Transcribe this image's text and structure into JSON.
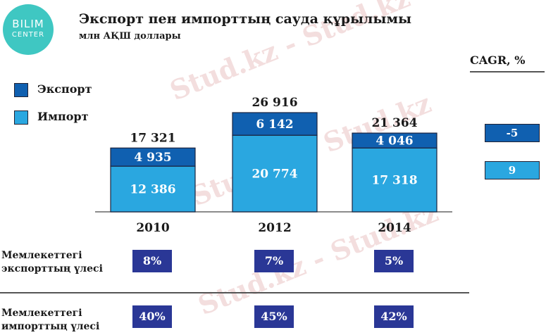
{
  "logo": {
    "line1": "BILIM",
    "line2": "CENTER"
  },
  "title": "Экспорт пен  импорттың сауда құрылымы",
  "subtitle": "млн АҚШ доллары",
  "legend": [
    {
      "label": "Экспорт",
      "color": "#1060b0"
    },
    {
      "label": "Импорт",
      "color": "#2aa7e0"
    }
  ],
  "cagr": {
    "title": "CAGR,  %",
    "export": "-5",
    "import": "9"
  },
  "chart_data": {
    "type": "bar",
    "stacked": true,
    "categories": [
      "2010",
      "2012",
      "2014"
    ],
    "series": [
      {
        "name": "Импорт",
        "values": [
          12386,
          20774,
          17318
        ],
        "labels": [
          "12 386",
          "20 774",
          "17 318"
        ],
        "color": "#2aa7e0"
      },
      {
        "name": "Экспорт",
        "values": [
          4935,
          6142,
          4046
        ],
        "labels": [
          "4 935",
          "6 142",
          "4 046"
        ],
        "color": "#1060b0"
      }
    ],
    "totals": [
      "17 321",
      "26 916",
      "21 364"
    ],
    "total_values": [
      17321,
      26916,
      21364
    ]
  },
  "shares": {
    "export": {
      "label_line1": "Мемлекеттегі",
      "label_line2": "экспорттың  үлесі",
      "values": [
        "8%",
        "7%",
        "5%"
      ]
    },
    "import": {
      "label_line1": "Мемлекеттегі",
      "label_line2": "импорттың  үлесі",
      "values": [
        "40%",
        "45%",
        "42%"
      ]
    }
  },
  "watermark": "Stud.kz - Stud.kz"
}
